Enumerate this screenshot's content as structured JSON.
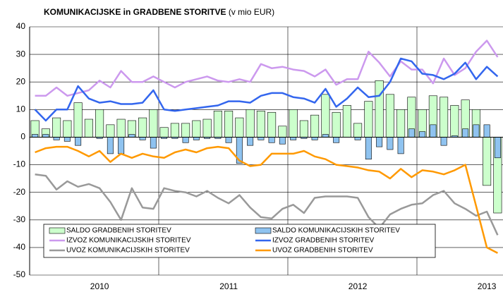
{
  "chart_data": {
    "type": "combo",
    "title": "KOMUNIKACIJSKE in GRADBENE STORITVE",
    "subtitle": "(v mio EUR)",
    "categories": [
      null,
      null,
      null,
      null,
      null,
      null,
      "2010",
      null,
      null,
      null,
      null,
      null,
      null,
      null,
      null,
      null,
      null,
      null,
      "2011",
      null,
      null,
      null,
      null,
      null,
      null,
      null,
      null,
      null,
      null,
      null,
      "2012",
      null,
      null,
      null,
      null,
      null,
      null,
      null,
      null,
      null,
      null,
      null,
      "2013",
      null
    ],
    "ylim": [
      -50,
      40
    ],
    "yticks": [
      -50,
      -40,
      -30,
      -20,
      -10,
      0,
      10,
      20,
      30,
      40
    ],
    "grid": true,
    "legend": "bottom",
    "series": [
      {
        "name": "SALDO GRADBENIH STORITEV",
        "type": "bar",
        "color": "#ccffcc",
        "values": [
          6,
          3,
          7,
          6,
          12.5,
          6.5,
          10,
          4.5,
          6.5,
          6,
          7,
          10,
          3.5,
          5,
          5,
          6,
          6.5,
          9.5,
          9.5,
          7,
          10,
          9.5,
          9,
          4,
          10,
          6,
          8,
          15.5,
          9,
          11.5,
          5,
          13,
          20.5,
          15.5,
          10,
          14.5,
          10,
          15,
          14.5,
          11.5,
          13.5,
          10,
          -17.5,
          -27.5
        ]
      },
      {
        "name": "SALDO KOMUNIKACIJSKIH STORITEV",
        "type": "bar",
        "color": "#8fc3f0",
        "values": [
          1,
          1,
          -1,
          -1.5,
          -3,
          0,
          -0.5,
          -6,
          -6,
          1,
          -1,
          -4,
          -0.5,
          -0.5,
          -2,
          -1,
          -0.5,
          -0.5,
          -2,
          -9.5,
          -3,
          -1,
          -2,
          -2.5,
          -1,
          -0.5,
          -1,
          1,
          -2,
          0,
          -1,
          -8,
          -3.5,
          -4.5,
          -6,
          3,
          2,
          4.5,
          -3,
          0.5,
          3,
          4.5,
          4.5,
          -7.5
        ]
      },
      {
        "name": "IZVOZ KOMUNIKACIJSKIH STORITEV",
        "type": "line",
        "color": "#cc99ee",
        "values": [
          15,
          15,
          18,
          15,
          16,
          17,
          20.5,
          18,
          24,
          20,
          20,
          22,
          20,
          18,
          20,
          21,
          22,
          20.5,
          20,
          21,
          20,
          26.5,
          25,
          25.5,
          24.5,
          24,
          22,
          24.5,
          19,
          21,
          21,
          31,
          27,
          22,
          27.5,
          24.5,
          24.5,
          19.5,
          28.5,
          22.5,
          25,
          31,
          35,
          29
        ]
      },
      {
        "name": "IZVOZ GRADBENIH STORITEV",
        "type": "line",
        "color": "#3366ee",
        "values": [
          10,
          6,
          10,
          10,
          18.5,
          14,
          12.5,
          13,
          12,
          12,
          12.5,
          17,
          10,
          9.5,
          10,
          10.5,
          11,
          11.5,
          13,
          13,
          12.5,
          15,
          16,
          16,
          14.5,
          14,
          12.5,
          17.5,
          11,
          14,
          18,
          14.5,
          15,
          20,
          28.5,
          27.5,
          23,
          22.5,
          21,
          23,
          27,
          21,
          25.5,
          22
        ]
      },
      {
        "name": "UVOZ KOMUNIKACIJSKIH STORITEV",
        "type": "line",
        "color": "#999999",
        "values": [
          -13.5,
          -14,
          -19,
          -16,
          -18,
          -17,
          -18.5,
          -23.5,
          -30,
          -18.5,
          -25.5,
          -26,
          -18.5,
          -19.5,
          -20,
          -21.5,
          -19.5,
          -22,
          -24,
          -21,
          -25.5,
          -29,
          -29.5,
          -26,
          -24.5,
          -27.5,
          -22,
          -21.5,
          -21.5,
          -21.5,
          -22,
          -29,
          -33,
          -28,
          -26,
          -24.5,
          -24,
          -21,
          -19.5,
          -24,
          -26,
          -28.5,
          -27,
          -35.5
        ]
      },
      {
        "name": "UVOZ GRADBENIH STORITEV",
        "type": "line",
        "color": "#ff9900",
        "values": [
          -5.5,
          -4,
          -3.5,
          -3.5,
          -5,
          -7,
          -5,
          -9,
          -6,
          -7.5,
          -6,
          -7,
          -7.5,
          -5.5,
          -4.5,
          -5.5,
          -4,
          -3.5,
          -4,
          -8.5,
          -10.5,
          -10,
          -6,
          -6,
          -6,
          -5,
          -7,
          -8,
          -10,
          -10.5,
          -11,
          -12,
          -12.5,
          -15,
          -11.5,
          -14.5,
          -12,
          -12.5,
          -13.5,
          -12,
          -10,
          -25,
          -40,
          -42
        ]
      }
    ]
  }
}
